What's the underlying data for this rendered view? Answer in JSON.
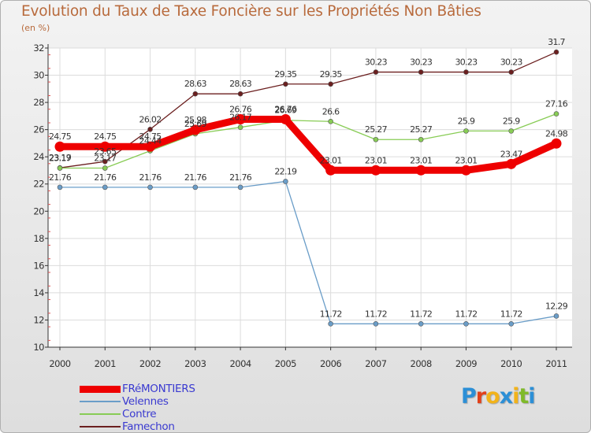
{
  "title": "Evolution du Taux de Taxe Foncière sur les Propriétés Non Bâties",
  "unit": "(en %)",
  "logo": {
    "letters": [
      "P",
      "r",
      "o",
      "x",
      "i",
      "t",
      "i"
    ],
    "colors": [
      "#2c8fd6",
      "#e2411a",
      "#f2b31a",
      "#2c8fd6",
      "#f2b31a",
      "#7fba2a",
      "#2c8fd6"
    ]
  },
  "chart_data": {
    "type": "line",
    "title": "Evolution du Taux de Taxe Foncière sur les Propriétés Non Bâties",
    "ylabel": "(en %)",
    "xlabel": "",
    "categories": [
      "2000",
      "2001",
      "2002",
      "2003",
      "2004",
      "2005",
      "2006",
      "2007",
      "2008",
      "2009",
      "2010",
      "2011"
    ],
    "ylim": [
      10,
      32
    ],
    "yticks": [
      10,
      12,
      14,
      16,
      18,
      20,
      22,
      24,
      26,
      28,
      30,
      32
    ],
    "grid": true,
    "series": [
      {
        "name": "FAMECHON",
        "legend": "Famechon",
        "color": "#6b1f1f",
        "values": [
          23.19,
          23.65,
          26.02,
          28.63,
          28.63,
          29.35,
          29.35,
          30.23,
          30.23,
          30.23,
          30.23,
          31.7
        ],
        "labels": [
          "23.19",
          "23.65",
          "26.02",
          "28.63",
          "28.63",
          "29.35",
          "29.35",
          "30.23",
          "30.23",
          "30.23",
          "30.23",
          "31.7"
        ]
      },
      {
        "name": "CONTRE",
        "legend": "Contre",
        "color": "#88cc55",
        "values": [
          23.17,
          23.17,
          24.44,
          25.69,
          26.17,
          26.69,
          26.6,
          25.27,
          25.27,
          25.9,
          25.9,
          27.16
        ],
        "labels": [
          "23.17",
          "23.17",
          "24.44",
          "25.69",
          "26.17",
          "26.69",
          "26.6",
          "25.27",
          "25.27",
          "25.9",
          "25.9",
          "27.16"
        ]
      },
      {
        "name": "VELENNES",
        "legend": "Velennes",
        "color": "#6a9dc8",
        "values": [
          21.76,
          21.76,
          21.76,
          21.76,
          21.76,
          22.19,
          11.72,
          11.72,
          11.72,
          11.72,
          11.72,
          12.29
        ],
        "labels": [
          "21.76",
          "21.76",
          "21.76",
          "21.76",
          "21.76",
          "22.19",
          "11.72",
          "11.72",
          "11.72",
          "11.72",
          "11.72",
          "12.29"
        ]
      },
      {
        "name": "FRÉMONTIERS",
        "legend": "FRéMONTIERS",
        "color": "#ee0000",
        "values": [
          24.75,
          24.75,
          24.75,
          25.98,
          26.76,
          26.76,
          23.01,
          23.01,
          23.01,
          23.01,
          23.47,
          24.98
        ],
        "labels": [
          "24.75",
          "24.75",
          "24.75",
          "25.98",
          "26.76",
          "26.76",
          "23.01",
          "23.01",
          "23.01",
          "23.01",
          "23.47",
          "24.98"
        ]
      }
    ]
  }
}
